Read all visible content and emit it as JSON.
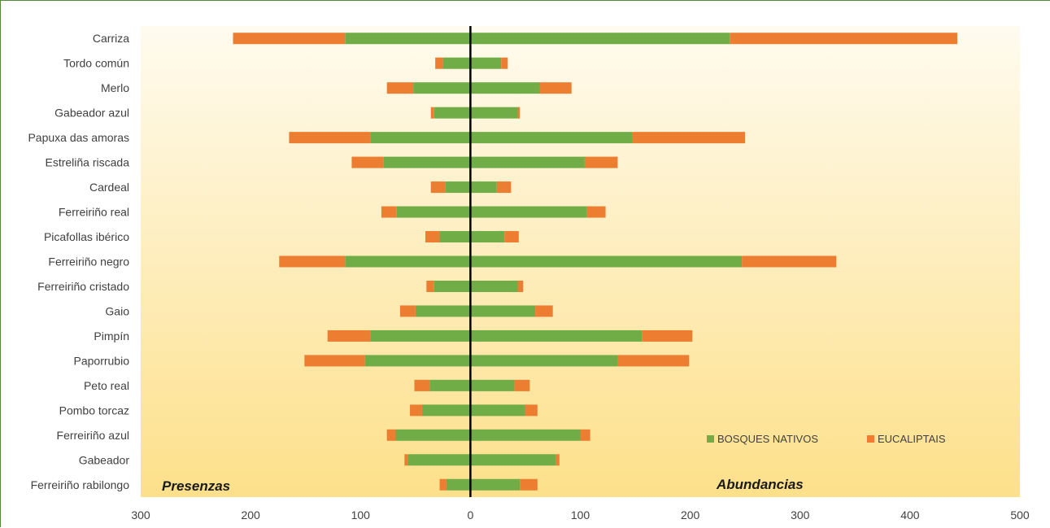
{
  "chart_data": {
    "type": "bar",
    "orientation": "horizontal-diverging",
    "categories": [
      "Carriza",
      "Tordo común",
      "Merlo",
      "Gabeador azul",
      "Papuxa das amoras",
      "Estreliña riscada",
      "Cardeal",
      "Ferreiriño real",
      "Picafollas ibérico",
      "Ferreiriño negro",
      "Ferreiriño cristado",
      "Gaio",
      "Pimpín",
      "Paporrubio",
      "Peto real",
      "Pombo torcaz",
      "Ferreiriño azul",
      "Gabeador",
      "Ferreiriño rabilongo"
    ],
    "presenzas": [
      {
        "name": "BOSQUES NATIVOS",
        "values": [
          114,
          25,
          52,
          33,
          91,
          79,
          23,
          67,
          28,
          114,
          33,
          50,
          91,
          96,
          37,
          44,
          68,
          57,
          22
        ]
      },
      {
        "name": "EUCALIPTAIS",
        "values": [
          102,
          7,
          24,
          3,
          74,
          29,
          13,
          14,
          13,
          60,
          7,
          14,
          39,
          55,
          14,
          11,
          8,
          3,
          6
        ]
      }
    ],
    "abundancias": [
      {
        "name": "BOSQUES NATIVOS",
        "values": [
          236,
          28,
          63,
          43,
          147,
          104,
          24,
          106,
          31,
          247,
          43,
          59,
          156,
          134,
          40,
          50,
          100,
          78,
          45
        ]
      },
      {
        "name": "EUCALIPTAIS",
        "values": [
          207,
          6,
          29,
          2,
          103,
          30,
          13,
          17,
          13,
          86,
          5,
          16,
          46,
          65,
          14,
          11,
          9,
          3,
          16
        ]
      }
    ],
    "xlim": [
      -300,
      500
    ],
    "xticks": [
      -300,
      -200,
      -100,
      0,
      100,
      200,
      300,
      400,
      500
    ],
    "tick_labels": [
      "300",
      "200",
      "100",
      "0",
      "100",
      "200",
      "300",
      "400",
      "500"
    ],
    "annotations": {
      "left": "Presenzas",
      "right": "Abundancias"
    },
    "legend": [
      {
        "name": "BOSQUES NATIVOS",
        "color": "#70ad47"
      },
      {
        "name": "EUCALIPTAIS",
        "color": "#ed7d31"
      }
    ],
    "legend_position": "bottom-right",
    "grid": false,
    "colors": {
      "native": "#70ad47",
      "eucalyptus": "#ed7d31",
      "background_top": "#fffbef",
      "background_bottom": "#fde08a",
      "zero_line": "#000000"
    }
  }
}
